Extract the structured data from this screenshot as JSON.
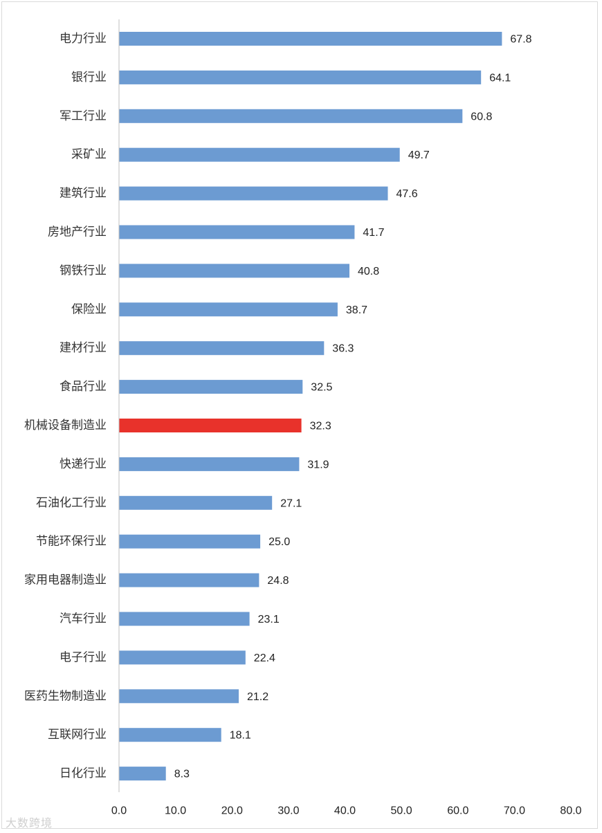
{
  "chart_data": {
    "type": "bar",
    "orientation": "horizontal",
    "categories": [
      "电力行业",
      "银行业",
      "军工行业",
      "采矿业",
      "建筑行业",
      "房地产行业",
      "钢铁行业",
      "保险业",
      "建材行业",
      "食品行业",
      "机械设备制造业",
      "快递行业",
      "石油化工行业",
      "节能环保行业",
      "家用电器制造业",
      "汽车行业",
      "电子行业",
      "医药生物制造业",
      "互联网行业",
      "日化行业"
    ],
    "values": [
      67.8,
      64.1,
      60.8,
      49.7,
      47.6,
      41.7,
      40.8,
      38.7,
      36.3,
      32.5,
      32.3,
      31.9,
      27.1,
      25.0,
      24.8,
      23.1,
      22.4,
      21.2,
      18.1,
      8.3
    ],
    "value_labels": [
      "67.8",
      "64.1",
      "60.8",
      "49.7",
      "47.6",
      "41.7",
      "40.8",
      "38.7",
      "36.3",
      "32.5",
      "32.3",
      "31.9",
      "27.1",
      "25.0",
      "24.8",
      "23.1",
      "22.4",
      "21.2",
      "18.1",
      "8.3"
    ],
    "highlight_category": "机械设备制造业",
    "colors": {
      "bar": "#6c9bd2",
      "highlight": "#e8322b",
      "axis": "#bfbfbf"
    },
    "xlim": [
      0,
      80
    ],
    "xticks": [
      "0.0",
      "10.0",
      "20.0",
      "30.0",
      "40.0",
      "50.0",
      "60.0",
      "70.0",
      "80.0"
    ],
    "title": "",
    "xlabel": "",
    "ylabel": "",
    "grid": false,
    "legend": "none"
  },
  "watermark": "大数跨境"
}
